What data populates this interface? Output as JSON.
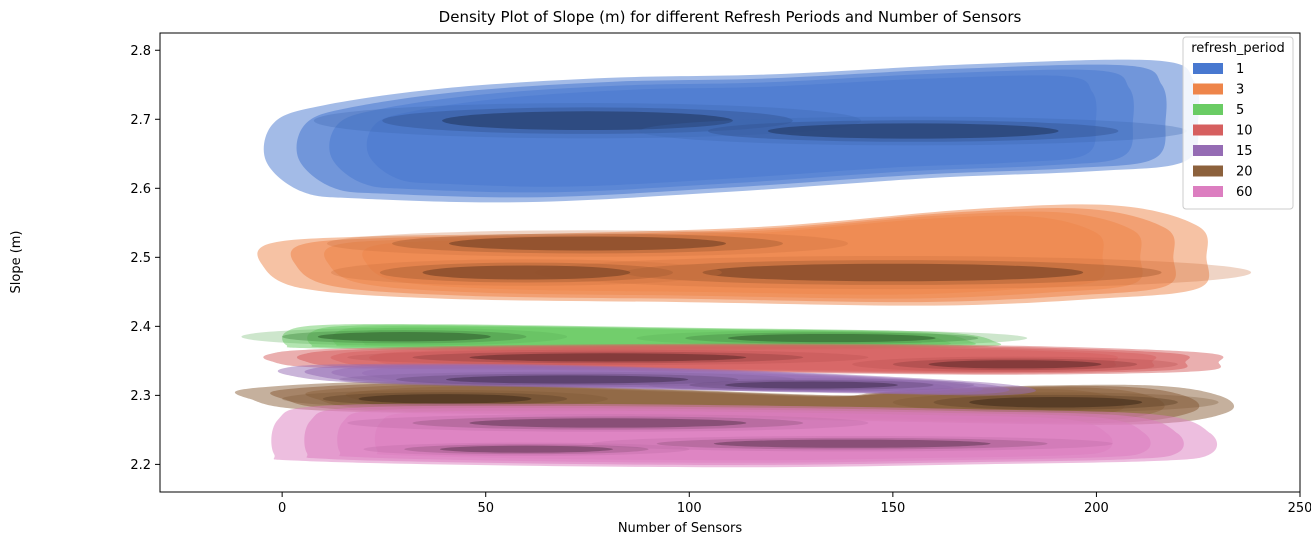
{
  "chart_data": {
    "type": "kde-density",
    "title": "Density Plot of Slope (m) for different Refresh Periods and Number of Sensors",
    "xlabel": "Number of Sensors",
    "ylabel": "Slope (m)",
    "xlim": [
      -30,
      250
    ],
    "ylim": [
      2.16,
      2.825
    ],
    "xticks": [
      0,
      50,
      100,
      150,
      200,
      250
    ],
    "yticks": [
      2.2,
      2.3,
      2.4,
      2.5,
      2.6,
      2.7,
      2.8
    ],
    "grid": false,
    "legend": {
      "title": "refresh_period",
      "placement": "top-right"
    },
    "series": [
      {
        "name": "1",
        "color": "#4878d0",
        "outline": [
          [
            -4,
            2.64
          ],
          [
            5,
            2.595
          ],
          [
            20,
            2.585
          ],
          [
            60,
            2.58
          ],
          [
            110,
            2.595
          ],
          [
            160,
            2.615
          ],
          [
            200,
            2.625
          ],
          [
            222,
            2.64
          ],
          [
            225,
            2.7
          ],
          [
            224,
            2.755
          ],
          [
            215,
            2.785
          ],
          [
            170,
            2.78
          ],
          [
            120,
            2.765
          ],
          [
            80,
            2.76
          ],
          [
            40,
            2.745
          ],
          [
            10,
            2.72
          ],
          [
            -2,
            2.695
          ]
        ],
        "peaks": [
          {
            "x": 75,
            "y": 2.698,
            "rx": 42,
            "ry": 0.016
          },
          {
            "x": 155,
            "y": 2.683,
            "rx": 42,
            "ry": 0.013
          }
        ]
      },
      {
        "name": "3",
        "color": "#ee854a",
        "outline": [
          [
            -5,
            2.49
          ],
          [
            5,
            2.455
          ],
          [
            40,
            2.44
          ],
          [
            100,
            2.435
          ],
          [
            160,
            2.43
          ],
          [
            200,
            2.44
          ],
          [
            225,
            2.455
          ],
          [
            227,
            2.5
          ],
          [
            225,
            2.545
          ],
          [
            205,
            2.575
          ],
          [
            170,
            2.57
          ],
          [
            120,
            2.545
          ],
          [
            70,
            2.535
          ],
          [
            20,
            2.53
          ],
          [
            -3,
            2.52
          ]
        ],
        "peaks": [
          {
            "x": 75,
            "y": 2.52,
            "rx": 40,
            "ry": 0.012
          },
          {
            "x": 150,
            "y": 2.478,
            "rx": 55,
            "ry": 0.015
          },
          {
            "x": 60,
            "y": 2.478,
            "rx": 30,
            "ry": 0.012
          }
        ]
      },
      {
        "name": "5",
        "color": "#6acc64",
        "outline": [
          [
            1,
            2.373
          ],
          [
            8,
            2.368
          ],
          [
            60,
            2.364
          ],
          [
            120,
            2.366
          ],
          [
            170,
            2.37
          ],
          [
            175,
            2.378
          ],
          [
            160,
            2.392
          ],
          [
            100,
            2.398
          ],
          [
            40,
            2.403
          ],
          [
            10,
            2.402
          ],
          [
            1,
            2.392
          ]
        ],
        "peaks": [
          {
            "x": 30,
            "y": 2.385,
            "rx": 25,
            "ry": 0.008
          },
          {
            "x": 135,
            "y": 2.383,
            "rx": 30,
            "ry": 0.007
          }
        ]
      },
      {
        "name": "10",
        "color": "#d65f5f",
        "outline": [
          [
            -3,
            2.35
          ],
          [
            10,
            2.34
          ],
          [
            60,
            2.337
          ],
          [
            120,
            2.333
          ],
          [
            180,
            2.33
          ],
          [
            225,
            2.335
          ],
          [
            230,
            2.348
          ],
          [
            226,
            2.362
          ],
          [
            180,
            2.372
          ],
          [
            120,
            2.375
          ],
          [
            60,
            2.373
          ],
          [
            10,
            2.367
          ],
          [
            -3,
            2.36
          ]
        ],
        "peaks": [
          {
            "x": 80,
            "y": 2.355,
            "rx": 40,
            "ry": 0.007
          },
          {
            "x": 180,
            "y": 2.345,
            "rx": 25,
            "ry": 0.007
          }
        ]
      },
      {
        "name": "20",
        "color": "#8c613c",
        "outline": [
          [
            -8,
            2.295
          ],
          [
            10,
            2.278
          ],
          [
            80,
            2.27
          ],
          [
            150,
            2.262
          ],
          [
            210,
            2.258
          ],
          [
            232,
            2.275
          ],
          [
            230,
            2.3
          ],
          [
            210,
            2.315
          ],
          [
            160,
            2.31
          ],
          [
            140,
            2.3
          ],
          [
            90,
            2.31
          ],
          [
            30,
            2.32
          ],
          [
            -8,
            2.31
          ]
        ],
        "peaks": [
          {
            "x": 40,
            "y": 2.295,
            "rx": 25,
            "ry": 0.008
          },
          {
            "x": 190,
            "y": 2.29,
            "rx": 25,
            "ry": 0.009
          }
        ]
      },
      {
        "name": "15",
        "color": "#956cb4",
        "outline": [
          [
            1,
            2.33
          ],
          [
            20,
            2.318
          ],
          [
            80,
            2.31
          ],
          [
            140,
            2.303
          ],
          [
            175,
            2.3
          ],
          [
            185,
            2.308
          ],
          [
            170,
            2.32
          ],
          [
            120,
            2.335
          ],
          [
            60,
            2.345
          ],
          [
            15,
            2.345
          ],
          [
            1,
            2.34
          ]
        ],
        "peaks": [
          {
            "x": 70,
            "y": 2.323,
            "rx": 35,
            "ry": 0.007
          },
          {
            "x": 130,
            "y": 2.315,
            "rx": 25,
            "ry": 0.006
          }
        ]
      },
      {
        "name": "60",
        "color": "#dc7ec0",
        "outline": [
          [
            -2,
            2.215
          ],
          [
            5,
            2.205
          ],
          [
            60,
            2.198
          ],
          [
            120,
            2.196
          ],
          [
            170,
            2.2
          ],
          [
            215,
            2.205
          ],
          [
            228,
            2.215
          ],
          [
            228,
            2.245
          ],
          [
            215,
            2.272
          ],
          [
            170,
            2.28
          ],
          [
            120,
            2.285
          ],
          [
            60,
            2.288
          ],
          [
            10,
            2.285
          ],
          [
            -1,
            2.265
          ]
        ],
        "peaks": [
          {
            "x": 80,
            "y": 2.26,
            "rx": 40,
            "ry": 0.008
          },
          {
            "x": 140,
            "y": 2.23,
            "rx": 40,
            "ry": 0.007
          },
          {
            "x": 60,
            "y": 2.222,
            "rx": 25,
            "ry": 0.006
          }
        ]
      }
    ]
  }
}
